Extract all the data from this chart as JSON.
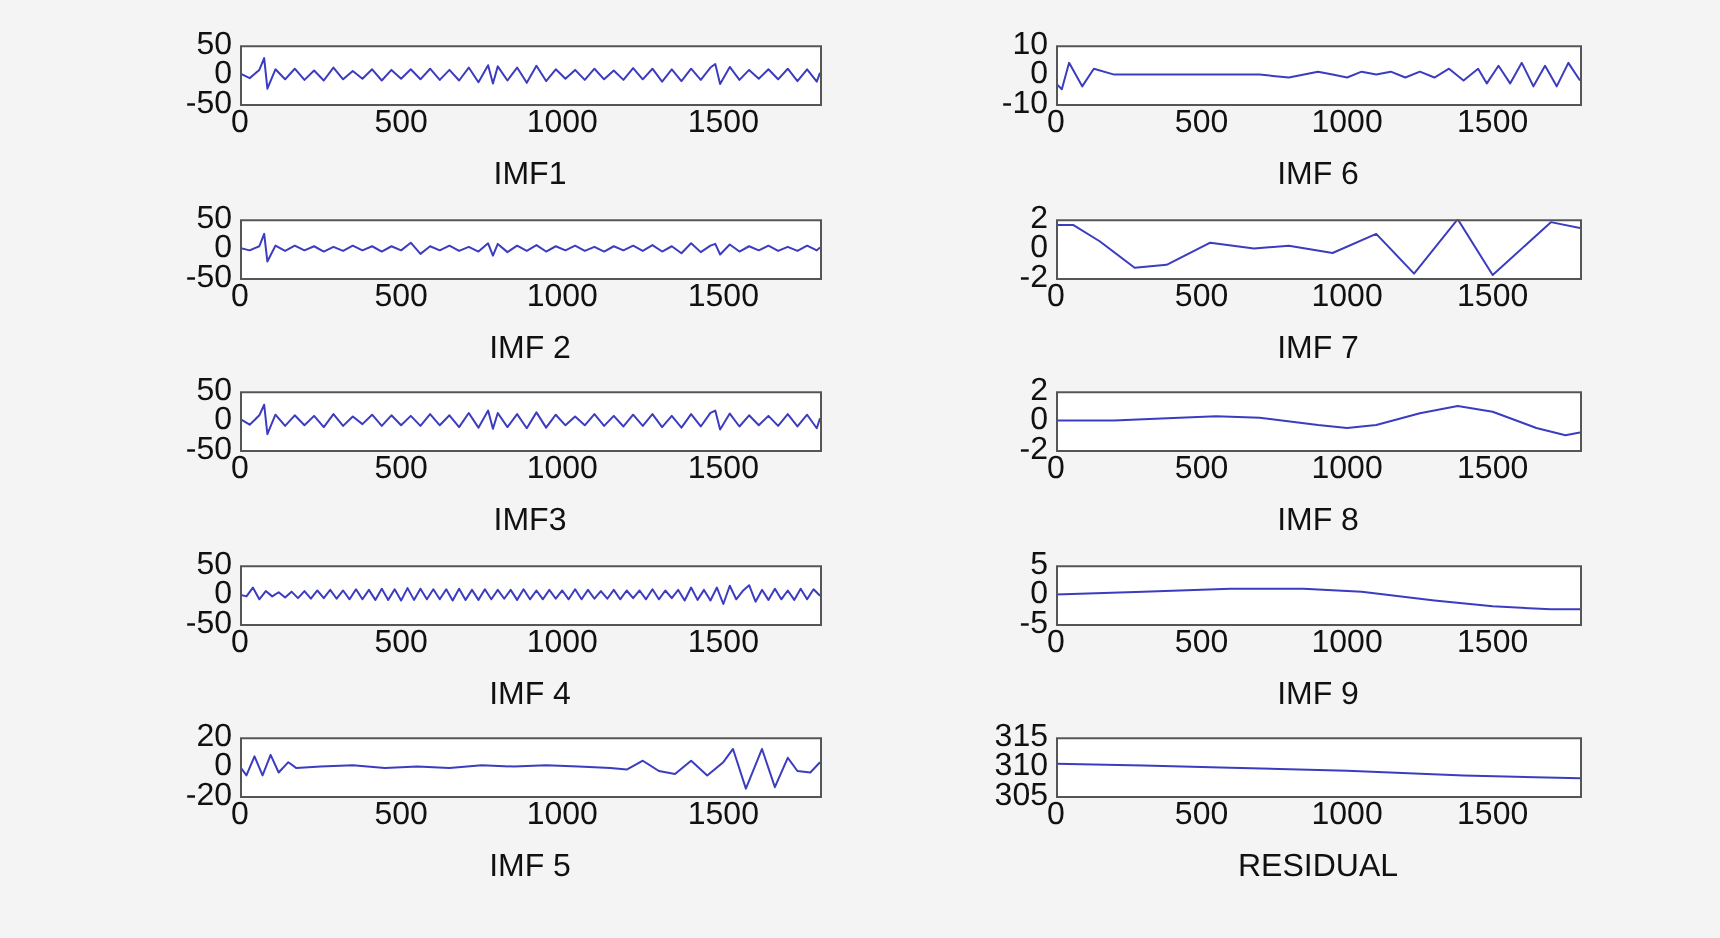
{
  "chart_data": [
    {
      "type": "line",
      "xlabel": "IMF1",
      "color": "#3c3cc0",
      "marker": "none",
      "xlim": [
        0,
        1800
      ],
      "xticks": [
        0,
        500,
        1000,
        1500
      ],
      "ylim": [
        -50,
        50
      ],
      "yticks": [
        -50,
        0,
        50
      ],
      "x": [
        0,
        30,
        60,
        75,
        85,
        110,
        140,
        170,
        200,
        230,
        260,
        290,
        320,
        350,
        380,
        410,
        440,
        470,
        500,
        530,
        560,
        590,
        620,
        650,
        680,
        710,
        740,
        770,
        785,
        800,
        830,
        860,
        890,
        920,
        950,
        980,
        1010,
        1040,
        1070,
        1100,
        1130,
        1160,
        1190,
        1220,
        1250,
        1280,
        1310,
        1340,
        1370,
        1400,
        1430,
        1460,
        1475,
        1490,
        1520,
        1550,
        1580,
        1610,
        1640,
        1670,
        1700,
        1730,
        1760,
        1790,
        1800
      ],
      "values": [
        2,
        -6,
        8,
        28,
        -24,
        9,
        -8,
        10,
        -9,
        7,
        -10,
        12,
        -8,
        6,
        -7,
        9,
        -10,
        8,
        -7,
        9,
        -8,
        10,
        -9,
        8,
        -10,
        12,
        -13,
        16,
        -15,
        14,
        -10,
        12,
        -14,
        15,
        -11,
        9,
        -7,
        8,
        -9,
        10,
        -8,
        7,
        -9,
        11,
        -8,
        10,
        -12,
        9,
        -11,
        10,
        -9,
        12,
        18,
        -16,
        13,
        -9,
        8,
        -7,
        9,
        -8,
        10,
        -11,
        9,
        -12,
        3
      ]
    },
    {
      "type": "line",
      "xlabel": "IMF 2",
      "color": "#3c3cc0",
      "marker": "none",
      "xlim": [
        0,
        1800
      ],
      "xticks": [
        0,
        500,
        1000,
        1500
      ],
      "ylim": [
        -50,
        50
      ],
      "yticks": [
        -50,
        0,
        50
      ],
      "x": [
        0,
        30,
        60,
        75,
        85,
        110,
        140,
        170,
        200,
        230,
        260,
        290,
        320,
        350,
        380,
        410,
        440,
        470,
        500,
        530,
        560,
        590,
        620,
        650,
        680,
        710,
        740,
        770,
        785,
        800,
        830,
        860,
        890,
        920,
        950,
        980,
        1010,
        1040,
        1070,
        1100,
        1130,
        1160,
        1190,
        1220,
        1250,
        1280,
        1310,
        1340,
        1370,
        1400,
        1430,
        1460,
        1475,
        1490,
        1520,
        1550,
        1580,
        1610,
        1640,
        1670,
        1700,
        1730,
        1760,
        1790,
        1800
      ],
      "values": [
        1,
        -3,
        4,
        25,
        -22,
        5,
        -4,
        5,
        -3,
        4,
        -5,
        3,
        -4,
        5,
        -3,
        4,
        -5,
        4,
        -3,
        10,
        -9,
        4,
        -3,
        5,
        -4,
        3,
        -5,
        9,
        -12,
        8,
        -6,
        5,
        -4,
        6,
        -5,
        4,
        -3,
        5,
        -4,
        3,
        -5,
        4,
        -3,
        5,
        -4,
        6,
        -5,
        4,
        -8,
        9,
        -6,
        5,
        8,
        -10,
        7,
        -5,
        4,
        -3,
        5,
        -4,
        3,
        -4,
        5,
        -3,
        2
      ]
    },
    {
      "type": "line",
      "xlabel": "IMF3",
      "color": "#3c3cc0",
      "marker": "none",
      "xlim": [
        0,
        1800
      ],
      "xticks": [
        0,
        500,
        1000,
        1500
      ],
      "ylim": [
        -50,
        50
      ],
      "yticks": [
        -50,
        0,
        50
      ],
      "x": [
        0,
        30,
        60,
        75,
        85,
        110,
        140,
        170,
        200,
        230,
        260,
        290,
        320,
        350,
        380,
        410,
        440,
        470,
        500,
        530,
        560,
        590,
        620,
        650,
        680,
        710,
        740,
        770,
        785,
        800,
        830,
        860,
        890,
        920,
        950,
        980,
        1010,
        1040,
        1070,
        1100,
        1130,
        1160,
        1190,
        1220,
        1250,
        1280,
        1310,
        1340,
        1370,
        1400,
        1430,
        1460,
        1475,
        1490,
        1520,
        1550,
        1580,
        1610,
        1640,
        1670,
        1700,
        1730,
        1760,
        1790,
        1800
      ],
      "values": [
        3,
        -7,
        9,
        27,
        -23,
        10,
        -9,
        9,
        -8,
        8,
        -11,
        11,
        -9,
        7,
        -6,
        10,
        -9,
        9,
        -8,
        8,
        -9,
        11,
        -8,
        9,
        -11,
        13,
        -12,
        17,
        -14,
        13,
        -11,
        11,
        -13,
        14,
        -12,
        10,
        -8,
        7,
        -8,
        11,
        -9,
        8,
        -10,
        10,
        -9,
        11,
        -11,
        8,
        -12,
        11,
        -10,
        13,
        17,
        -15,
        12,
        -10,
        9,
        -8,
        8,
        -9,
        11,
        -10,
        10,
        -13,
        4
      ]
    },
    {
      "type": "line",
      "xlabel": "IMF 4",
      "color": "#3c3cc0",
      "marker": "none",
      "xlim": [
        0,
        1800
      ],
      "xticks": [
        0,
        500,
        1000,
        1500
      ],
      "ylim": [
        -50,
        50
      ],
      "yticks": [
        -50,
        0,
        50
      ],
      "x": [
        0,
        20,
        40,
        60,
        80,
        100,
        120,
        140,
        160,
        180,
        200,
        220,
        240,
        260,
        280,
        300,
        320,
        340,
        360,
        380,
        400,
        420,
        440,
        460,
        480,
        500,
        520,
        540,
        560,
        580,
        600,
        620,
        640,
        660,
        680,
        700,
        720,
        740,
        760,
        780,
        800,
        820,
        840,
        860,
        880,
        900,
        920,
        940,
        960,
        980,
        1000,
        1020,
        1040,
        1060,
        1080,
        1100,
        1120,
        1140,
        1160,
        1180,
        1200,
        1220,
        1240,
        1260,
        1280,
        1300,
        1320,
        1340,
        1360,
        1380,
        1400,
        1420,
        1440,
        1460,
        1480,
        1500,
        1520,
        1540,
        1560,
        1580,
        1600,
        1620,
        1640,
        1660,
        1680,
        1700,
        1720,
        1740,
        1760,
        1780,
        1800
      ],
      "values": [
        0,
        -3,
        12,
        -8,
        6,
        -3,
        4,
        -5,
        5,
        -6,
        6,
        -7,
        7,
        -6,
        8,
        -7,
        7,
        -8,
        9,
        -8,
        8,
        -9,
        10,
        -9,
        9,
        -10,
        11,
        -9,
        10,
        -8,
        9,
        -8,
        9,
        -10,
        10,
        -9,
        8,
        -9,
        9,
        -8,
        8,
        -7,
        8,
        -9,
        9,
        -8,
        7,
        -8,
        8,
        -7,
        7,
        -8,
        9,
        -8,
        8,
        -7,
        6,
        -7,
        8,
        -8,
        7,
        -6,
        7,
        -8,
        9,
        -8,
        7,
        -6,
        8,
        -10,
        12,
        -9,
        8,
        -10,
        12,
        -16,
        15,
        -8,
        6,
        16,
        -12,
        8,
        -9,
        10,
        -8,
        7,
        -9,
        10,
        -8,
        9,
        -2
      ]
    },
    {
      "type": "line",
      "xlabel": "IMF 5",
      "color": "#3c3cc0",
      "marker": "none",
      "xlim": [
        0,
        1800
      ],
      "xticks": [
        0,
        500,
        1000,
        1500
      ],
      "ylim": [
        -20,
        20
      ],
      "yticks": [
        -20,
        0,
        20
      ],
      "x": [
        0,
        20,
        45,
        70,
        95,
        120,
        150,
        175,
        250,
        350,
        450,
        550,
        650,
        750,
        850,
        950,
        1050,
        1150,
        1200,
        1250,
        1300,
        1350,
        1400,
        1450,
        1500,
        1530,
        1570,
        1620,
        1660,
        1700,
        1730,
        1770,
        1800
      ],
      "values": [
        0,
        -6,
        7,
        -6,
        8,
        -4,
        3,
        -1,
        0,
        1,
        -1,
        0,
        -1,
        1,
        0,
        1,
        0,
        -1,
        -2,
        4,
        -3,
        -5,
        4,
        -6,
        3,
        12,
        -15,
        12,
        -14,
        6,
        -3,
        -4,
        3
      ]
    },
    {
      "type": "line",
      "xlabel": "IMF 6",
      "color": "#3c3cc0",
      "marker": "none",
      "xlim": [
        0,
        1800
      ],
      "xticks": [
        0,
        500,
        1000,
        1500
      ],
      "ylim": [
        -10,
        10
      ],
      "yticks": [
        -10,
        0,
        10
      ],
      "x": [
        0,
        20,
        45,
        90,
        130,
        200,
        300,
        400,
        500,
        600,
        700,
        800,
        900,
        950,
        1000,
        1050,
        1100,
        1150,
        1200,
        1250,
        1300,
        1350,
        1400,
        1450,
        1480,
        1520,
        1560,
        1600,
        1640,
        1680,
        1720,
        1760,
        1800
      ],
      "values": [
        -3,
        -5,
        4,
        -4,
        2,
        0,
        0,
        0,
        0,
        0,
        0,
        -1,
        1,
        0,
        -1,
        1,
        0,
        1,
        -1,
        1,
        -1,
        2,
        -2,
        2,
        -3,
        3,
        -3,
        4,
        -4,
        3,
        -4,
        4,
        -2
      ]
    },
    {
      "type": "line",
      "xlabel": "IMF 7",
      "color": "#3c3cc0",
      "marker": "none",
      "xlim": [
        0,
        1800
      ],
      "xticks": [
        0,
        500,
        1000,
        1500
      ],
      "ylim": [
        -2,
        2
      ],
      "yticks": [
        -2,
        0,
        2
      ],
      "x": [
        0,
        60,
        150,
        270,
        380,
        530,
        680,
        800,
        950,
        1100,
        1230,
        1380,
        1500,
        1700,
        1800
      ],
      "values": [
        1.6,
        1.6,
        0.5,
        -1.3,
        -1.1,
        0.4,
        0,
        0.2,
        -0.3,
        1,
        -1.7,
        2,
        -1.8,
        1.8,
        1.4
      ]
    },
    {
      "type": "line",
      "xlabel": "IMF 8",
      "color": "#3c3cc0",
      "marker": "none",
      "xlim": [
        0,
        1800
      ],
      "xticks": [
        0,
        500,
        1000,
        1500
      ],
      "ylim": [
        -2,
        2
      ],
      "yticks": [
        -2,
        0,
        2
      ],
      "x": [
        0,
        200,
        300,
        550,
        700,
        900,
        1000,
        1100,
        1250,
        1380,
        1500,
        1650,
        1750,
        1800
      ],
      "values": [
        0,
        0,
        0.1,
        0.3,
        0.2,
        -0.3,
        -0.5,
        -0.3,
        0.5,
        1,
        0.6,
        -0.5,
        -1,
        -0.8
      ]
    },
    {
      "type": "line",
      "xlabel": "IMF 9",
      "color": "#3c3cc0",
      "marker": "none",
      "xlim": [
        0,
        1800
      ],
      "xticks": [
        0,
        500,
        1000,
        1500
      ],
      "ylim": [
        -5,
        5
      ],
      "yticks": [
        -5,
        0,
        5
      ],
      "x": [
        0,
        300,
        600,
        850,
        1050,
        1300,
        1500,
        1700,
        1800
      ],
      "values": [
        0,
        0.5,
        1,
        1,
        0.5,
        -1,
        -2,
        -2.5,
        -2.5
      ]
    },
    {
      "type": "line",
      "xlabel": "RESIDUAL",
      "color": "#3c3cc0",
      "marker": "none",
      "xlim": [
        0,
        1800
      ],
      "xticks": [
        0,
        500,
        1000,
        1500
      ],
      "ylim": [
        305,
        315
      ],
      "yticks": [
        305,
        310,
        315
      ],
      "x": [
        0,
        300,
        600,
        1000,
        1400,
        1800
      ],
      "values": [
        310.5,
        310.2,
        309.8,
        309.3,
        308.5,
        308
      ]
    }
  ]
}
